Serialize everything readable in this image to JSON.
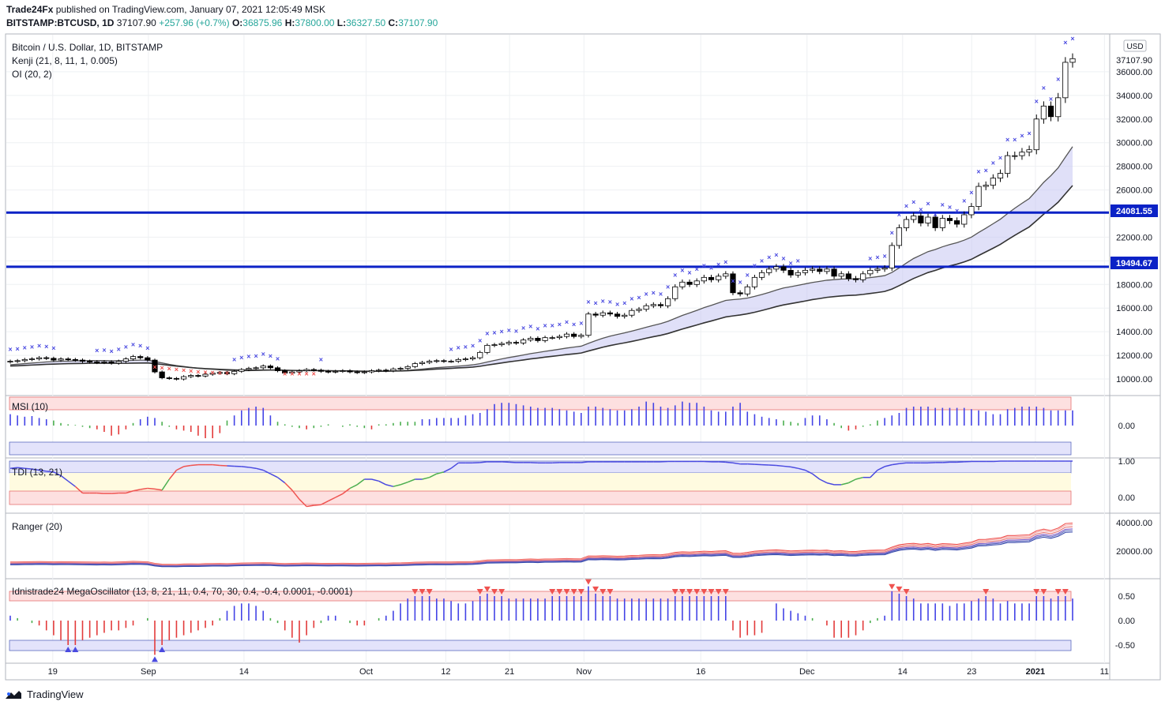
{
  "header": {
    "publisher": "Trade24Fx",
    "published_text": "published on TradingView.com, January 07, 2021 12:05:49 MSK",
    "symbol": "BITSTAMP:BTCUSD, 1D",
    "last": "37107.90",
    "change": "+257.96 (+0.7%)",
    "o_label": "O:",
    "o": "36875.96",
    "h_label": "H:",
    "h": "37800.00",
    "l_label": "L:",
    "l": "36327.50",
    "c_label": "C:",
    "c": "37107.90"
  },
  "legend": {
    "title": "Bitcoin / U.S. Dollar, 1D, BITSTAMP",
    "kenji": "Kenji (21, 8, 11, 1, 0.005)",
    "oi": "OI (20, 2)",
    "msi": "MSI (10)",
    "tdi": "TDI (13, 21)",
    "ranger": "Ranger (20)",
    "mega": "Idnistrade24 MegaOscillator (13, 8, 21, 11, 0.4, 70, 30, 0.4, -0.4, 0.0001, -0.0001)"
  },
  "currency": "USD",
  "price_label": "37107.90",
  "level_labels": [
    "24081.55",
    "19494.67"
  ],
  "colors": {
    "up": "#ffffff",
    "down": "#000000",
    "level": "#0b22c6",
    "cloud": "#c7c7f3",
    "cross_blue": "#4a4ae0",
    "cross_red": "#ef5350",
    "hist_blue": "#4343e6",
    "hist_red": "#e33b3b",
    "hist_green": "#4caf50"
  },
  "footer": {
    "brand": "TradingView"
  },
  "chart_data": [
    {
      "type": "candlestick",
      "title": "Bitcoin / U.S. Dollar, 1D, BITSTAMP",
      "ylim": [
        8800,
        39000
      ],
      "y_ticks": [
        10000,
        12000,
        14000,
        16000,
        18000,
        20000,
        22000,
        24000,
        26000,
        28000,
        30000,
        32000,
        34000,
        36000
      ],
      "x_ticks": [
        "19",
        "Sep",
        "14",
        "Oct",
        "12",
        "21",
        "Nov",
        "16",
        "Dec",
        "14",
        "23",
        "2021",
        "11"
      ],
      "grid": true,
      "horizontal_levels": [
        24081.55,
        19494.67
      ],
      "close": [
        11500,
        11550,
        11650,
        11700,
        11800,
        11750,
        11600,
        11700,
        11650,
        11600,
        11500,
        11450,
        11400,
        11450,
        11350,
        11500,
        11700,
        11900,
        11800,
        11600,
        10600,
        10100,
        10050,
        10000,
        10200,
        10300,
        10250,
        10400,
        10500,
        10550,
        10450,
        10650,
        10800,
        10900,
        10950,
        11100,
        10950,
        10700,
        10500,
        10600,
        10700,
        10800,
        10750,
        10650,
        10600,
        10650,
        10700,
        10600,
        10550,
        10600,
        10700,
        10750,
        10700,
        10850,
        10900,
        11050,
        11300,
        11400,
        11500,
        11550,
        11500,
        11500,
        11650,
        11700,
        11800,
        12250,
        12850,
        12900,
        13000,
        13100,
        13050,
        13300,
        13450,
        13250,
        13500,
        13500,
        13600,
        13800,
        13600,
        13700,
        15500,
        15400,
        15600,
        15500,
        15300,
        15400,
        15800,
        15900,
        16200,
        16300,
        16200,
        16800,
        17800,
        18200,
        18000,
        18300,
        18600,
        18400,
        18700,
        18900,
        17300,
        17200,
        17800,
        18600,
        19000,
        19300,
        19500,
        19200,
        18800,
        19000,
        19200,
        19300,
        19100,
        19300,
        18700,
        18900,
        18500,
        18400,
        18900,
        19200,
        19300,
        19400,
        21300,
        22800,
        23500,
        23800,
        23200,
        23700,
        22800,
        23600,
        23400,
        23100,
        23900,
        24600,
        26300,
        26400,
        27000,
        27400,
        28900,
        28900,
        29200,
        29400,
        32000,
        33100,
        32200,
        33800,
        36800,
        37107.9
      ],
      "cloud_upper": [
        11200,
        11250,
        11300,
        11350,
        11400,
        11450,
        11480,
        11500,
        11520,
        11540,
        11550,
        11560,
        11560,
        11560,
        11550,
        11550,
        11560,
        11580,
        11600,
        11600,
        11480,
        11360,
        11240,
        11140,
        11060,
        10980,
        10910,
        10860,
        10820,
        10780,
        10740,
        10720,
        10710,
        10710,
        10720,
        10740,
        10750,
        10750,
        10730,
        10720,
        10720,
        10720,
        10720,
        10710,
        10700,
        10690,
        10690,
        10680,
        10670,
        10660,
        10660,
        10670,
        10670,
        10690,
        10710,
        10740,
        10790,
        10840,
        10900,
        10960,
        11000,
        11040,
        11090,
        11140,
        11200,
        11300,
        11440,
        11570,
        11700,
        11820,
        11920,
        12030,
        12150,
        12240,
        12340,
        12430,
        12520,
        12620,
        12700,
        12780,
        13020,
        13240,
        13450,
        13630,
        13770,
        13900,
        14050,
        14210,
        14380,
        14540,
        14690,
        14880,
        15130,
        15380,
        15590,
        15810,
        16040,
        16230,
        16440,
        16650,
        16720,
        16770,
        16850,
        16990,
        17150,
        17330,
        17530,
        17700,
        17810,
        17930,
        18050,
        18170,
        18260,
        18360,
        18410,
        18460,
        18470,
        18470,
        18510,
        18580,
        18660,
        18750,
        19020,
        19400,
        19810,
        20200,
        20490,
        20780,
        20960,
        21190,
        21380,
        21540,
        21750,
        22010,
        22400,
        22760,
        23140,
        23520,
        24000,
        24450,
        24870,
        25270,
        25940,
        26640,
        27210,
        27870,
        28780,
        29660
      ],
      "cloud_lower": [
        11100,
        11120,
        11150,
        11180,
        11210,
        11240,
        11260,
        11280,
        11300,
        11310,
        11320,
        11330,
        11330,
        11330,
        11330,
        11330,
        11330,
        11340,
        11350,
        11360,
        11300,
        11230,
        11160,
        11090,
        11030,
        10970,
        10920,
        10880,
        10850,
        10820,
        10790,
        10770,
        10760,
        10750,
        10750,
        10760,
        10760,
        10760,
        10740,
        10730,
        10720,
        10720,
        10720,
        10710,
        10700,
        10690,
        10690,
        10680,
        10670,
        10660,
        10660,
        10660,
        10660,
        10670,
        10680,
        10700,
        10730,
        10760,
        10800,
        10840,
        10870,
        10900,
        10940,
        10970,
        11010,
        11080,
        11180,
        11270,
        11360,
        11450,
        11530,
        11610,
        11700,
        11770,
        11850,
        11920,
        11990,
        12070,
        12130,
        12200,
        12370,
        12530,
        12690,
        12830,
        12950,
        13060,
        13180,
        13310,
        13450,
        13580,
        13700,
        13850,
        14040,
        14230,
        14400,
        14570,
        14750,
        14910,
        15080,
        15250,
        15340,
        15420,
        15520,
        15650,
        15800,
        15960,
        16130,
        16270,
        16380,
        16490,
        16600,
        16720,
        16810,
        16910,
        16970,
        17030,
        17070,
        17100,
        17160,
        17240,
        17320,
        17410,
        17610,
        17900,
        18210,
        18510,
        18760,
        19010,
        19190,
        19400,
        19570,
        19720,
        19910,
        20130,
        20450,
        20760,
        21070,
        21390,
        21780,
        22160,
        22520,
        22870,
        23400,
        23950,
        24430,
        24960,
        25670,
        26370
      ],
      "levels_note": "x axis: daily candles from Aug 2020 to Jan 2021"
    },
    {
      "type": "bar",
      "title": "MSI (10)",
      "ylim": [
        -1.8,
        2.4
      ],
      "y_ticks": [
        0.0
      ],
      "values": [
        0.9,
        0.8,
        0.7,
        0.75,
        0.6,
        0.5,
        0.4,
        0.2,
        0.1,
        0.05,
        -0.1,
        -0.2,
        -0.3,
        -0.5,
        -0.8,
        -0.7,
        -0.3,
        0.2,
        0.5,
        0.7,
        0.6,
        0.3,
        -0.1,
        -0.3,
        -0.4,
        -0.5,
        -0.8,
        -1.0,
        -1.0,
        -0.6,
        0.4,
        0.8,
        1.2,
        1.4,
        1.5,
        1.4,
        0.8,
        0.3,
        0.1,
        -0.1,
        -0.2,
        -0.3,
        -0.2,
        -0.1,
        0.1,
        0.0,
        -0.1,
        0.1,
        -0.1,
        -0.2,
        -0.3,
        0.1,
        0.1,
        0.2,
        0.3,
        0.3,
        0.3,
        0.5,
        0.5,
        0.6,
        0.6,
        0.6,
        0.6,
        0.8,
        0.9,
        1.0,
        1.3,
        1.7,
        1.8,
        1.8,
        1.7,
        1.6,
        1.5,
        1.4,
        1.4,
        1.4,
        1.3,
        1.2,
        1.1,
        1.0,
        1.5,
        1.5,
        1.4,
        1.3,
        1.2,
        1.2,
        1.3,
        1.5,
        1.9,
        1.8,
        1.5,
        1.4,
        1.6,
        1.9,
        1.8,
        1.8,
        1.5,
        1.2,
        1.1,
        1.1,
        1.5,
        1.8,
        1.1,
        0.9,
        0.7,
        0.6,
        0.5,
        0.4,
        0.3,
        0.2,
        0.6,
        0.8,
        0.8,
        0.5,
        0.2,
        -0.2,
        -0.4,
        -0.3,
        -0.1,
        0.1,
        0.4,
        0.6,
        0.8,
        1.0,
        1.4,
        1.5,
        1.5,
        1.5,
        1.4,
        1.4,
        1.4,
        1.4,
        1.4,
        1.3,
        1.2,
        1.1,
        0.9,
        0.9,
        1.3,
        1.4,
        1.5,
        1.5,
        1.5,
        1.4,
        1.2,
        1.2,
        1.2,
        1.2
      ]
    },
    {
      "type": "line",
      "title": "TDI (13, 21)",
      "ylim": [
        -0.4,
        1.2
      ],
      "y_ticks": [
        0.0,
        1.0
      ],
      "values": [
        0.8,
        0.82,
        0.8,
        0.78,
        0.75,
        0.72,
        0.7,
        0.6,
        0.45,
        0.3,
        0.12,
        0.12,
        0.12,
        0.11,
        0.11,
        0.12,
        0.12,
        0.18,
        0.22,
        0.25,
        0.23,
        0.2,
        0.5,
        0.75,
        0.85,
        0.88,
        0.9,
        0.9,
        0.9,
        0.88,
        0.87,
        0.86,
        0.85,
        0.83,
        0.8,
        0.75,
        0.65,
        0.55,
        0.4,
        0.2,
        -0.05,
        -0.25,
        -0.22,
        -0.2,
        -0.1,
        0.0,
        0.1,
        0.25,
        0.35,
        0.5,
        0.5,
        0.45,
        0.35,
        0.3,
        0.35,
        0.42,
        0.5,
        0.5,
        0.55,
        0.65,
        0.7,
        0.8,
        0.95,
        0.95,
        0.95,
        0.96,
        0.98,
        0.98,
        0.98,
        0.97,
        0.96,
        0.96,
        0.96,
        0.95,
        0.95,
        0.95,
        0.96,
        0.96,
        0.96,
        0.96,
        0.98,
        0.98,
        0.98,
        0.98,
        0.98,
        0.98,
        0.98,
        0.98,
        0.98,
        0.98,
        0.98,
        0.99,
        0.99,
        0.99,
        0.99,
        0.99,
        0.99,
        0.98,
        0.98,
        0.97,
        0.95,
        0.92,
        0.92,
        0.91,
        0.9,
        0.89,
        0.88,
        0.86,
        0.84,
        0.8,
        0.75,
        0.65,
        0.5,
        0.4,
        0.35,
        0.35,
        0.4,
        0.5,
        0.55,
        0.55,
        0.75,
        0.85,
        0.9,
        0.93,
        0.95,
        0.95,
        0.95,
        0.95,
        0.96,
        0.96,
        0.97,
        0.97,
        0.98,
        0.99,
        0.99,
        0.99,
        0.99,
        1.0,
        1.0,
        1.0,
        1.0,
        1.0,
        1.0,
        1.0,
        1.0,
        1.0,
        1.0,
        1.0
      ]
    },
    {
      "type": "line",
      "title": "Ranger (20)",
      "ylim": [
        5000,
        45000
      ],
      "y_ticks": [
        20000,
        40000
      ],
      "series_from": "close"
    },
    {
      "type": "bar",
      "title": "Idnistrade24 MegaOscillator (13, 8, 21, 11, 0.4, 70, 30, 0.4, -0.4, 0.0001, -0.0001)",
      "ylim": [
        -0.7,
        0.8
      ],
      "y_ticks": [
        0.5,
        0.0,
        -0.5
      ],
      "values": [
        0.1,
        0.05,
        0.0,
        -0.05,
        -0.1,
        -0.2,
        -0.3,
        -0.4,
        -0.5,
        -0.5,
        -0.4,
        -0.35,
        -0.3,
        -0.25,
        -0.2,
        -0.2,
        -0.15,
        -0.1,
        0.0,
        0.05,
        -0.7,
        -0.5,
        -0.4,
        -0.35,
        -0.3,
        -0.25,
        -0.2,
        -0.15,
        -0.1,
        0.05,
        0.2,
        0.3,
        0.35,
        0.35,
        0.3,
        0.2,
        0.05,
        -0.05,
        -0.2,
        -0.35,
        -0.45,
        -0.3,
        -0.15,
        -0.05,
        0.1,
        0.1,
        0.0,
        -0.05,
        -0.1,
        -0.1,
        0.0,
        0.05,
        0.1,
        0.2,
        0.35,
        0.45,
        0.5,
        0.5,
        0.5,
        0.45,
        0.45,
        0.4,
        0.35,
        0.35,
        0.4,
        0.5,
        0.55,
        0.5,
        0.5,
        0.45,
        0.45,
        0.45,
        0.45,
        0.45,
        0.45,
        0.5,
        0.5,
        0.5,
        0.5,
        0.5,
        0.7,
        0.55,
        0.5,
        0.5,
        0.45,
        0.45,
        0.45,
        0.45,
        0.45,
        0.45,
        0.45,
        0.45,
        0.5,
        0.5,
        0.5,
        0.5,
        0.5,
        0.5,
        0.5,
        0.5,
        -0.2,
        -0.35,
        -0.3,
        -0.3,
        -0.25,
        0.0,
        0.35,
        0.25,
        0.2,
        0.15,
        0.1,
        0.05,
        0.0,
        -0.1,
        -0.35,
        -0.35,
        -0.35,
        -0.3,
        -0.2,
        -0.05,
        0.05,
        0.1,
        0.6,
        0.55,
        0.5,
        0.45,
        0.35,
        0.35,
        0.35,
        0.35,
        0.3,
        0.35,
        0.35,
        0.4,
        0.45,
        0.5,
        0.45,
        0.35,
        0.4,
        0.35,
        0.35,
        0.35,
        0.5,
        0.5,
        0.45,
        0.5,
        0.5,
        0.45
      ]
    }
  ]
}
